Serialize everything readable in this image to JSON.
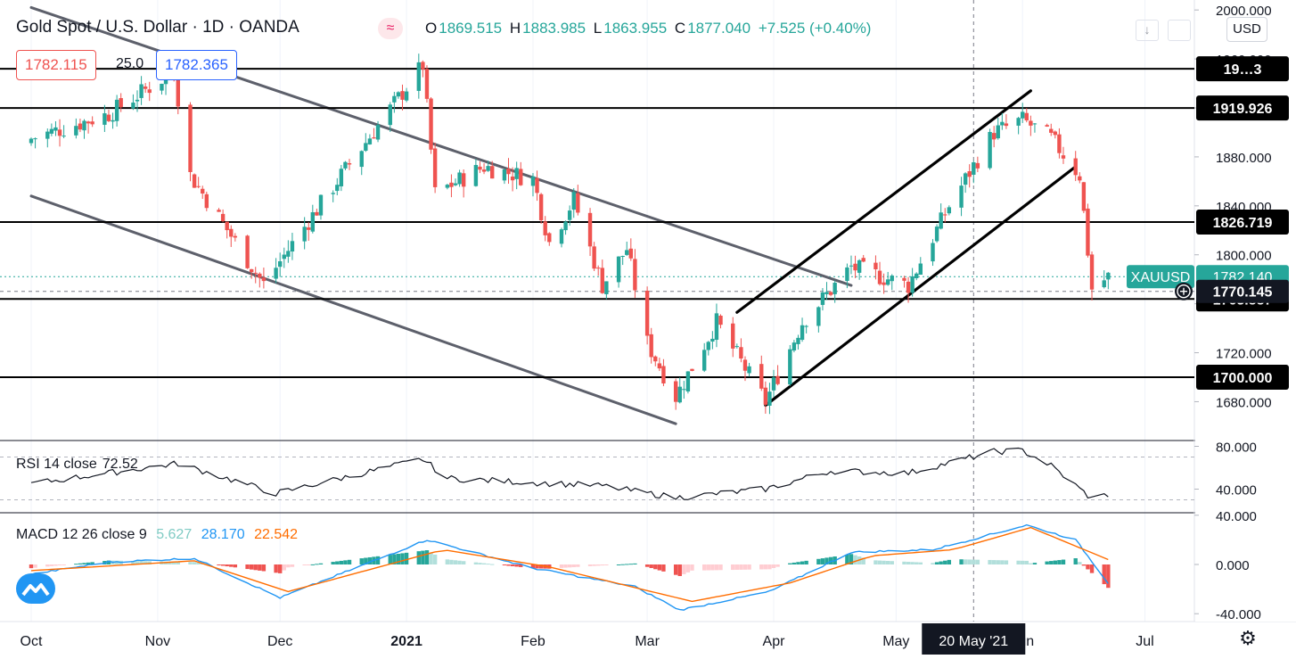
{
  "header": {
    "symbol_title": "Gold Spot / U.S. Dollar · 1D · OANDA",
    "ohlc": [
      {
        "key": "O",
        "val": "1869.515"
      },
      {
        "key": "H",
        "val": "1883.985"
      },
      {
        "key": "L",
        "val": "1863.955"
      },
      {
        "key": "C",
        "val": "1877.040"
      },
      {
        "key": "",
        "val": "+7.525 (+0.40%)"
      }
    ],
    "sell_price": "1782.115",
    "spread": "25.0",
    "buy_price": "1782.365",
    "currency": "USD"
  },
  "colors": {
    "up": "#26a69a",
    "down": "#ef5350",
    "rsi": "#131722",
    "macd": "#2196f3",
    "signal": "#ff6d00",
    "hist_pos_strong": "#26a69a",
    "hist_pos_weak": "#b2dfdb",
    "hist_neg_strong": "#ef5350",
    "hist_neg_weak": "#ffcdd2"
  },
  "icons": [
    "wave-icon",
    "plus-circle-icon",
    "settings-gear-icon",
    "logo-icon"
  ],
  "chart_data": [
    {
      "type": "candlestick",
      "title": "Gold Spot / U.S. Dollar · 1D · OANDA",
      "ylim": [
        1660,
        2000
      ],
      "y_ticks": [
        "1680.000",
        "1720.000",
        "1760.000",
        "1800.000",
        "1840.000",
        "1880.000",
        "1920.000",
        "1960.000",
        "2000.000"
      ],
      "x_ticks": [
        "Oct",
        "Nov",
        "Dec",
        "2021",
        "Feb",
        "Mar",
        "Apr",
        "May",
        "Jun",
        "Jul"
      ],
      "crosshair_date": "20 May '21",
      "horizontal_levels": [
        {
          "value": 1952,
          "label": "19…3"
        },
        {
          "value": 1919.926,
          "label": "1919.926"
        },
        {
          "value": 1826.719,
          "label": "1826.719"
        },
        {
          "value": 1763.887,
          "label": "1763.887"
        },
        {
          "value": 1700.0,
          "label": "1700.000"
        }
      ],
      "last_price": {
        "symbol": "XAUUSD",
        "value": "1782.140"
      },
      "crosshair_price": "1770.145",
      "anchors": [
        {
          "date": "2020-10-01",
          "price": 1895
        },
        {
          "date": "2020-10-20",
          "price": 1915
        },
        {
          "date": "2020-11-05",
          "price": 1950
        },
        {
          "date": "2020-11-09",
          "price": 1865
        },
        {
          "date": "2020-11-27",
          "price": 1776
        },
        {
          "date": "2020-12-16",
          "price": 1865
        },
        {
          "date": "2021-01-05",
          "price": 1955
        },
        {
          "date": "2021-01-08",
          "price": 1850
        },
        {
          "date": "2021-01-20",
          "price": 1872
        },
        {
          "date": "2021-02-01",
          "price": 1862
        },
        {
          "date": "2021-02-05",
          "price": 1810
        },
        {
          "date": "2021-02-11",
          "price": 1845
        },
        {
          "date": "2021-02-18",
          "price": 1775
        },
        {
          "date": "2021-02-24",
          "price": 1805
        },
        {
          "date": "2021-03-01",
          "price": 1728
        },
        {
          "date": "2021-03-08",
          "price": 1684
        },
        {
          "date": "2021-03-18",
          "price": 1745
        },
        {
          "date": "2021-03-30",
          "price": 1680
        },
        {
          "date": "2021-04-08",
          "price": 1745
        },
        {
          "date": "2021-04-20",
          "price": 1790
        },
        {
          "date": "2021-05-04",
          "price": 1775
        },
        {
          "date": "2021-05-14",
          "price": 1840
        },
        {
          "date": "2021-05-25",
          "price": 1900
        },
        {
          "date": "2021-06-01",
          "price": 1910
        },
        {
          "date": "2021-06-08",
          "price": 1895
        },
        {
          "date": "2021-06-15",
          "price": 1865
        },
        {
          "date": "2021-06-18",
          "price": 1772
        },
        {
          "date": "2021-06-22",
          "price": 1782
        }
      ],
      "trendlines": [
        {
          "p1": {
            "date": "2020-10-01",
            "price": 2002
          },
          "p2": {
            "date": "2021-04-20",
            "price": 1775
          }
        },
        {
          "p1": {
            "date": "2020-10-01",
            "price": 1848
          },
          "p2": {
            "date": "2021-03-08",
            "price": 1662
          }
        },
        {
          "p1": {
            "date": "2021-03-23",
            "price": 1753
          },
          "p2": {
            "date": "2021-06-03",
            "price": 1934
          }
        },
        {
          "p1": {
            "date": "2021-03-30",
            "price": 1677
          },
          "p2": {
            "date": "2021-06-14",
            "price": 1872
          }
        }
      ]
    },
    {
      "type": "line",
      "title": "RSI 14 close",
      "value_label": "72.52",
      "ylim": [
        25,
        85
      ],
      "y_ticks": [
        "40.000",
        "80.000"
      ],
      "anchors": [
        {
          "date": "2020-10-01",
          "value": 45
        },
        {
          "date": "2020-11-06",
          "value": 64
        },
        {
          "date": "2020-11-30",
          "value": 36
        },
        {
          "date": "2021-01-05",
          "value": 68
        },
        {
          "date": "2021-01-11",
          "value": 50
        },
        {
          "date": "2021-02-18",
          "value": 43
        },
        {
          "date": "2021-03-08",
          "value": 32
        },
        {
          "date": "2021-03-30",
          "value": 40
        },
        {
          "date": "2021-04-15",
          "value": 57
        },
        {
          "date": "2021-05-04",
          "value": 55
        },
        {
          "date": "2021-05-25",
          "value": 75
        },
        {
          "date": "2021-06-01",
          "value": 76
        },
        {
          "date": "2021-06-08",
          "value": 62
        },
        {
          "date": "2021-06-18",
          "value": 31
        },
        {
          "date": "2021-06-22",
          "value": 35
        }
      ]
    },
    {
      "type": "line",
      "title": "MACD 12 26 close 9",
      "values": [
        "5.627",
        "28.170",
        "22.542"
      ],
      "ylim": [
        -45,
        45
      ],
      "y_ticks": [
        "-40.000",
        "0.000",
        "40.000"
      ],
      "macd_anchors": [
        {
          "date": "2020-10-01",
          "value": -8
        },
        {
          "date": "2020-10-20",
          "value": 2
        },
        {
          "date": "2020-11-10",
          "value": 5
        },
        {
          "date": "2020-12-01",
          "value": -27
        },
        {
          "date": "2021-01-06",
          "value": 20
        },
        {
          "date": "2021-02-01",
          "value": -3
        },
        {
          "date": "2021-02-26",
          "value": -18
        },
        {
          "date": "2021-03-09",
          "value": -37
        },
        {
          "date": "2021-03-31",
          "value": -22
        },
        {
          "date": "2021-04-20",
          "value": 10
        },
        {
          "date": "2021-05-10",
          "value": 12
        },
        {
          "date": "2021-06-02",
          "value": 32
        },
        {
          "date": "2021-06-14",
          "value": 20
        },
        {
          "date": "2021-06-22",
          "value": -15
        }
      ],
      "signal_anchors": [
        {
          "date": "2020-10-01",
          "value": -5
        },
        {
          "date": "2020-11-10",
          "value": 3
        },
        {
          "date": "2020-12-03",
          "value": -22
        },
        {
          "date": "2021-01-10",
          "value": 12
        },
        {
          "date": "2021-02-05",
          "value": -2
        },
        {
          "date": "2021-03-12",
          "value": -30
        },
        {
          "date": "2021-04-05",
          "value": -15
        },
        {
          "date": "2021-04-25",
          "value": 7
        },
        {
          "date": "2021-05-15",
          "value": 12
        },
        {
          "date": "2021-06-03",
          "value": 30
        },
        {
          "date": "2021-06-22",
          "value": 4
        }
      ]
    }
  ]
}
